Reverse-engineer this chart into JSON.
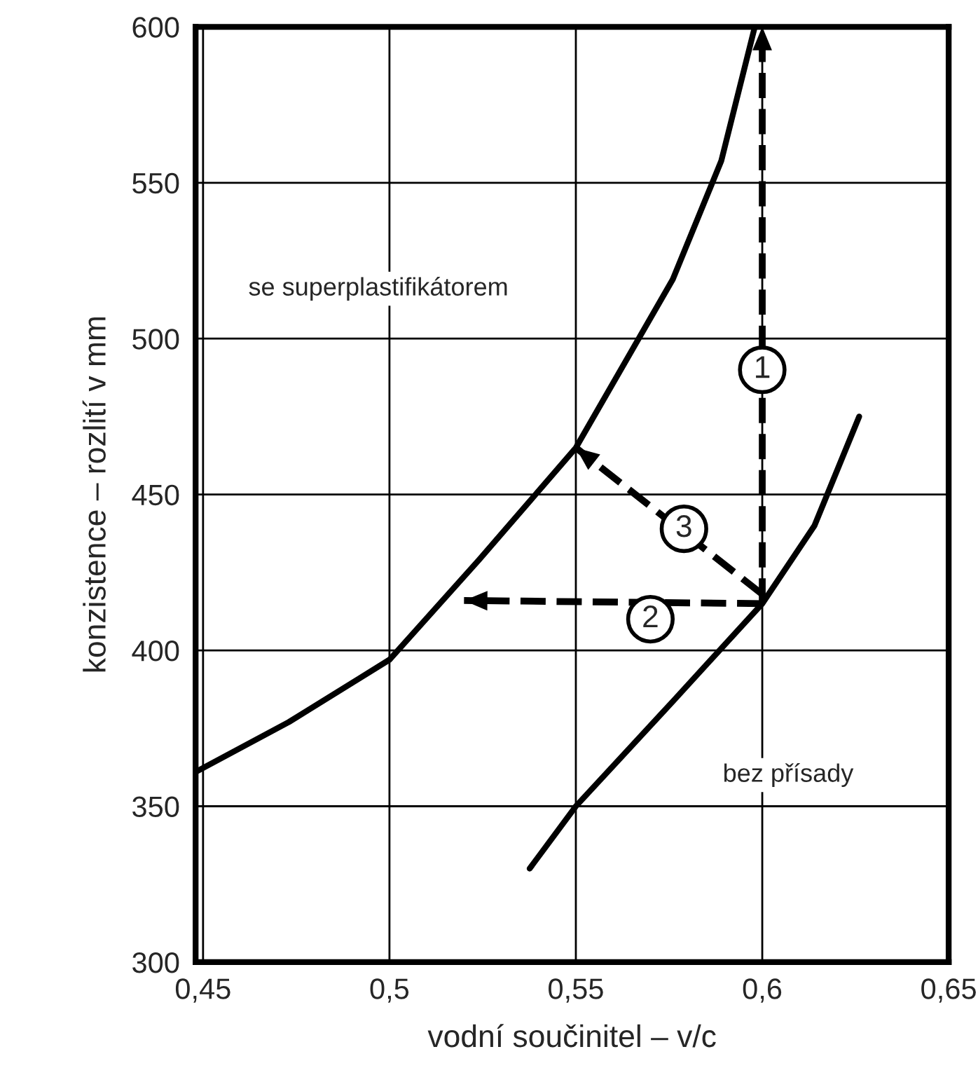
{
  "chart_data": {
    "type": "line",
    "xlabel": "vodní součinitel – v/c",
    "ylabel": "konzistence – rozlití v mm",
    "xlim": [
      0.448,
      0.65
    ],
    "ylim": [
      300,
      600
    ],
    "xticks": [
      {
        "value": 0.45,
        "label": "0,45"
      },
      {
        "value": 0.5,
        "label": "0,5"
      },
      {
        "value": 0.55,
        "label": "0,55"
      },
      {
        "value": 0.6,
        "label": "0,6"
      },
      {
        "value": 0.65,
        "label": "0,65"
      }
    ],
    "yticks": [
      300,
      350,
      400,
      450,
      500,
      550,
      600
    ],
    "grid": true,
    "marker": "none",
    "series": [
      {
        "color": "#000000",
        "line_style": "solid",
        "x": [
          0.448,
          0.473,
          0.5,
          0.524,
          0.55,
          0.576,
          0.589,
          0.598
        ],
        "values": [
          361,
          377,
          397,
          429,
          465,
          519,
          557,
          600
        ]
      },
      {
        "color": "#000000",
        "line_style": "solid",
        "x": [
          0.5376,
          0.55,
          0.5763,
          0.6,
          0.614,
          0.626
        ],
        "values": [
          330,
          350,
          384,
          415,
          440,
          475
        ]
      },
      {
        "color": "#000000",
        "line_style": "dashed",
        "x": [
          0.6,
          0.6
        ],
        "values": [
          415,
          600
        ]
      },
      {
        "color": "#000000",
        "line_style": "dashed",
        "x": [
          0.6,
          0.52
        ],
        "values": [
          415,
          416
        ]
      },
      {
        "color": "#000000",
        "line_style": "dashed",
        "x": [
          0.6,
          0.55
        ],
        "values": [
          418,
          465
        ]
      }
    ],
    "annotations": [
      "se superplastifikátorem",
      "bez přísady",
      {
        "text": "1",
        "x": 0.6,
        "y": 490
      },
      {
        "text": "2",
        "x": 0.57,
        "y": 410
      },
      {
        "text": "3",
        "x": 0.579,
        "y": 439
      }
    ]
  }
}
